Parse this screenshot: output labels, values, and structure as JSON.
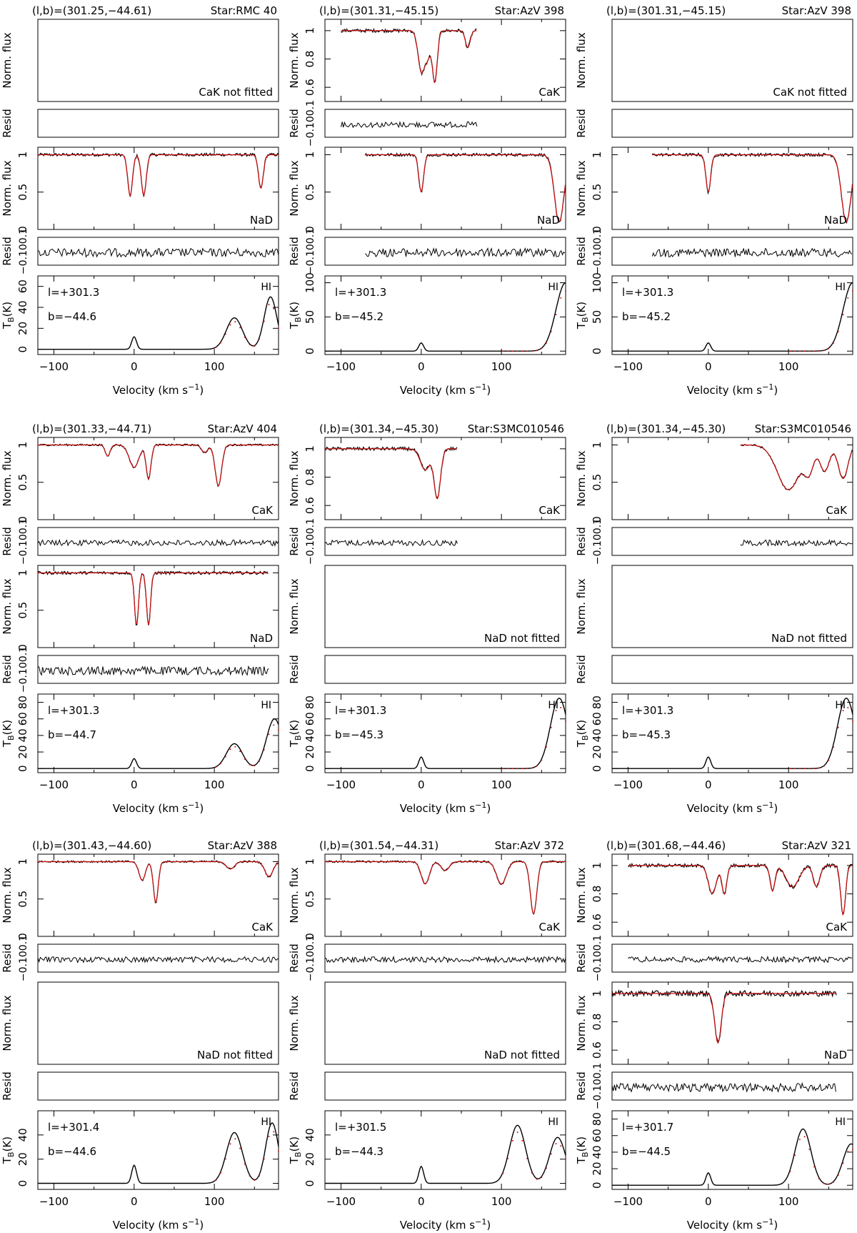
{
  "figure": {
    "x_axis_label": "Velocity (km s",
    "x_axis_label_sup": "−1",
    "x_axis_label_close": ")",
    "x_tick_labels": [
      "−100",
      "0",
      "100"
    ],
    "colors": {
      "data": "#000000",
      "fit": "#cc1111",
      "frame": "#000000"
    },
    "hi_label": "HI",
    "resid_label": "Resid",
    "flux_label": "Norm. flux",
    "tb_label": "T",
    "tb_label_sub": "B",
    "tb_label_close": "(K)"
  },
  "chart_data": [
    {
      "type": "line",
      "coords": "(l,b)=(301.25,−44.61)",
      "star": "Star:RMC 40",
      "x_range": [
        -120,
        180
      ],
      "cak": {
        "fitted": false,
        "label": "CaK not fitted"
      },
      "nad": {
        "fitted": true,
        "label": "NaD",
        "yticks": [
          "0",
          "0.5",
          "1"
        ],
        "ylim": [
          0,
          1.1
        ],
        "v_range": [
          -120,
          180
        ],
        "lines": [
          {
            "v": -5,
            "depth": 0.55,
            "width": 3
          },
          {
            "v": 12,
            "depth": 0.55,
            "width": 3
          },
          {
            "v": 158,
            "depth": 0.45,
            "width": 3
          }
        ]
      },
      "resid": {
        "yticks": [
          "−0.1",
          "0",
          "0.1"
        ]
      },
      "hi": {
        "l_label": "l=+301.3",
        "b_label": "b=−44.6",
        "yticks": [
          "0",
          "20",
          "40",
          "60"
        ],
        "ylim": [
          -5,
          70
        ],
        "components": [
          {
            "v": 0,
            "amp": 12,
            "width": 3
          },
          {
            "v": 125,
            "amp": 30,
            "width": 10
          },
          {
            "v": 170,
            "amp": 50,
            "width": 8
          }
        ]
      }
    },
    {
      "type": "line",
      "coords": "(l,b)=(301.31,−45.15)",
      "star": "Star:AzV 398",
      "x_range": [
        -120,
        180
      ],
      "cak": {
        "fitted": true,
        "label": "CaK",
        "yticks": [
          "0.6",
          "0.8",
          "1"
        ],
        "ylim": [
          0.5,
          1.08
        ],
        "v_range": [
          -100,
          70
        ],
        "lines": [
          {
            "v": 0,
            "depth": 0.28,
            "width": 4
          },
          {
            "v": 17,
            "depth": 0.36,
            "width": 3
          },
          {
            "v": 8,
            "depth": 0.18,
            "width": 4
          },
          {
            "v": 58,
            "depth": 0.12,
            "width": 3
          }
        ]
      },
      "nad": {
        "fitted": true,
        "label": "NaD",
        "yticks": [
          "0",
          "0.5",
          "1"
        ],
        "ylim": [
          0,
          1.1
        ],
        "v_range": [
          -70,
          180
        ],
        "lines": [
          {
            "v": 0,
            "depth": 0.5,
            "width": 3
          },
          {
            "v": 172,
            "depth": 0.9,
            "width": 6
          }
        ]
      },
      "resid": {
        "yticks": [
          "−0.1",
          "0",
          "0.1"
        ]
      },
      "hi": {
        "l_label": "l=+301.3",
        "b_label": "b=−45.2",
        "yticks": [
          "0",
          "50",
          "100"
        ],
        "ylim": [
          -5,
          110
        ],
        "components": [
          {
            "v": 0,
            "amp": 12,
            "width": 3
          },
          {
            "v": 180,
            "amp": 100,
            "width": 12
          }
        ]
      }
    },
    {
      "type": "line",
      "coords": "(l,b)=(301.31,−45.15)",
      "star": "Star:AzV 398",
      "x_range": [
        -120,
        180
      ],
      "cak": {
        "fitted": false,
        "label": "CaK not fitted"
      },
      "nad": {
        "fitted": true,
        "label": "NaD",
        "yticks": [
          "0",
          "0.5",
          "1"
        ],
        "ylim": [
          0,
          1.1
        ],
        "v_range": [
          -70,
          180
        ],
        "lines": [
          {
            "v": 0,
            "depth": 0.5,
            "width": 3
          },
          {
            "v": 172,
            "depth": 0.9,
            "width": 6
          }
        ]
      },
      "resid": {
        "yticks": [
          "−0.1",
          "0",
          "0.1"
        ]
      },
      "hi": {
        "l_label": "l=+301.3",
        "b_label": "b=−45.2",
        "yticks": [
          "0",
          "50",
          "100"
        ],
        "ylim": [
          -5,
          110
        ],
        "components": [
          {
            "v": 0,
            "amp": 12,
            "width": 3
          },
          {
            "v": 180,
            "amp": 100,
            "width": 12
          }
        ]
      }
    },
    {
      "type": "line",
      "coords": "(l,b)=(301.33,−44.71)",
      "star": "Star:AzV 404",
      "x_range": [
        -120,
        180
      ],
      "cak": {
        "fitted": true,
        "label": "CaK",
        "yticks": [
          "0",
          "0.5",
          "1"
        ],
        "ylim": [
          0,
          1.1
        ],
        "v_range": [
          -120,
          180
        ],
        "lines": [
          {
            "v": -33,
            "depth": 0.15,
            "width": 3
          },
          {
            "v": 0,
            "depth": 0.3,
            "width": 6
          },
          {
            "v": 18,
            "depth": 0.45,
            "width": 3
          },
          {
            "v": 105,
            "depth": 0.55,
            "width": 4
          },
          {
            "v": 88,
            "depth": 0.1,
            "width": 4
          }
        ]
      },
      "nad": {
        "fitted": true,
        "label": "NaD",
        "yticks": [
          "0",
          "0.5",
          "1"
        ],
        "ylim": [
          0,
          1.1
        ],
        "v_range": [
          -120,
          168
        ],
        "lines": [
          {
            "v": 3,
            "depth": 0.7,
            "width": 2.5
          },
          {
            "v": 18,
            "depth": 0.7,
            "width": 2.5
          }
        ]
      },
      "resid": {
        "yticks": [
          "−0.1",
          "0",
          "0.1"
        ]
      },
      "hi": {
        "l_label": "l=+301.3",
        "b_label": "b=−44.7",
        "yticks": [
          "0",
          "20",
          "40",
          "60",
          "80"
        ],
        "ylim": [
          -5,
          90
        ],
        "components": [
          {
            "v": 0,
            "amp": 12,
            "width": 3
          },
          {
            "v": 125,
            "amp": 30,
            "width": 10
          },
          {
            "v": 175,
            "amp": 60,
            "width": 10
          }
        ]
      }
    },
    {
      "type": "line",
      "coords": "(l,b)=(301.34,−45.30)",
      "star": "Star:S3MC010546",
      "x_range": [
        -120,
        180
      ],
      "cak": {
        "fitted": true,
        "label": "CaK",
        "yticks": [
          "0.6",
          "0.8",
          "1"
        ],
        "ylim": [
          0.5,
          1.08
        ],
        "v_range": [
          -120,
          45
        ],
        "lines": [
          {
            "v": 5,
            "depth": 0.15,
            "width": 6
          },
          {
            "v": 20,
            "depth": 0.35,
            "width": 4
          }
        ]
      },
      "nad": {
        "fitted": false,
        "label": "NaD not fitted"
      },
      "resid": {
        "yticks": [
          "−0.1",
          "0",
          "0.1"
        ]
      },
      "hi": {
        "l_label": "l=+301.3",
        "b_label": "b=−45.3",
        "yticks": [
          "0",
          "20",
          "40",
          "60",
          "80"
        ],
        "ylim": [
          -5,
          90
        ],
        "components": [
          {
            "v": 0,
            "amp": 14,
            "width": 3
          },
          {
            "v": 172,
            "amp": 85,
            "width": 11
          }
        ]
      }
    },
    {
      "type": "line",
      "coords": "(l,b)=(301.34,−45.30)",
      "star": "Star:S3MC010546",
      "x_range": [
        -120,
        180
      ],
      "cak": {
        "fitted": true,
        "label": "CaK",
        "yticks": [
          "0",
          "0.5",
          "1"
        ],
        "ylim": [
          0,
          1.1
        ],
        "v_range": [
          40,
          180
        ],
        "lines": [
          {
            "v": 100,
            "depth": 0.6,
            "width": 14
          },
          {
            "v": 125,
            "depth": 0.35,
            "width": 6
          },
          {
            "v": 145,
            "depth": 0.35,
            "width": 6
          },
          {
            "v": 168,
            "depth": 0.45,
            "width": 6
          }
        ]
      },
      "nad": {
        "fitted": false,
        "label": "NaD not fitted"
      },
      "resid": {
        "yticks": [
          "−0.1",
          "0",
          "0.1"
        ]
      },
      "hi": {
        "l_label": "l=+301.3",
        "b_label": "b=−45.3",
        "yticks": [
          "0",
          "20",
          "40",
          "60",
          "80"
        ],
        "ylim": [
          -5,
          90
        ],
        "components": [
          {
            "v": 0,
            "amp": 14,
            "width": 3
          },
          {
            "v": 172,
            "amp": 85,
            "width": 11
          }
        ]
      }
    },
    {
      "type": "line",
      "coords": "(l,b)=(301.43,−44.60)",
      "star": "Star:AzV 388",
      "x_range": [
        -120,
        180
      ],
      "cak": {
        "fitted": true,
        "label": "CaK",
        "yticks": [
          "0",
          "0.5",
          "1"
        ],
        "ylim": [
          0,
          1.1
        ],
        "v_range": [
          -120,
          180
        ],
        "lines": [
          {
            "v": 10,
            "depth": 0.25,
            "width": 4
          },
          {
            "v": 27,
            "depth": 0.55,
            "width": 3
          },
          {
            "v": 120,
            "depth": 0.1,
            "width": 5
          },
          {
            "v": 168,
            "depth": 0.2,
            "width": 5
          }
        ]
      },
      "nad": {
        "fitted": false,
        "label": "NaD not fitted"
      },
      "resid": {
        "yticks": [
          "−0.1",
          "0",
          "0.1"
        ]
      },
      "hi": {
        "l_label": "l=+301.4",
        "b_label": "b=−44.6",
        "yticks": [
          "0",
          "20",
          "40"
        ],
        "ylim": [
          -5,
          60
        ],
        "components": [
          {
            "v": 0,
            "amp": 15,
            "width": 3
          },
          {
            "v": 125,
            "amp": 42,
            "width": 10
          },
          {
            "v": 172,
            "amp": 50,
            "width": 8
          }
        ]
      }
    },
    {
      "type": "line",
      "coords": "(l,b)=(301.54,−44.31)",
      "star": "Star:AzV 372",
      "x_range": [
        -120,
        180
      ],
      "cak": {
        "fitted": true,
        "label": "CaK",
        "yticks": [
          "0",
          "0.5",
          "1"
        ],
        "ylim": [
          0,
          1.1
        ],
        "v_range": [
          -120,
          180
        ],
        "lines": [
          {
            "v": 5,
            "depth": 0.3,
            "width": 5
          },
          {
            "v": 30,
            "depth": 0.12,
            "width": 5
          },
          {
            "v": 100,
            "depth": 0.3,
            "width": 6
          },
          {
            "v": 140,
            "depth": 0.7,
            "width": 4
          }
        ]
      },
      "nad": {
        "fitted": false,
        "label": "NaD not fitted"
      },
      "resid": {
        "yticks": [
          "−0.1",
          "0",
          "0.1"
        ]
      },
      "hi": {
        "l_label": "l=+301.5",
        "b_label": "b=−44.3",
        "yticks": [
          "0",
          "20",
          "40"
        ],
        "ylim": [
          -5,
          60
        ],
        "components": [
          {
            "v": 0,
            "amp": 14,
            "width": 3
          },
          {
            "v": 120,
            "amp": 48,
            "width": 10
          },
          {
            "v": 170,
            "amp": 38,
            "width": 10
          }
        ]
      }
    },
    {
      "type": "line",
      "coords": "(l,b)=(301.68,−44.46)",
      "star": "Star:AzV 321",
      "x_range": [
        -120,
        180
      ],
      "cak": {
        "fitted": true,
        "label": "CaK",
        "yticks": [
          "0.6",
          "0.8",
          "1"
        ],
        "ylim": [
          0.5,
          1.08
        ],
        "v_range": [
          -100,
          180
        ],
        "lines": [
          {
            "v": 5,
            "depth": 0.2,
            "width": 5
          },
          {
            "v": 20,
            "depth": 0.2,
            "width": 3
          },
          {
            "v": 80,
            "depth": 0.18,
            "width": 3
          },
          {
            "v": 105,
            "depth": 0.15,
            "width": 8
          },
          {
            "v": 135,
            "depth": 0.15,
            "width": 4
          },
          {
            "v": 168,
            "depth": 0.35,
            "width": 3
          }
        ]
      },
      "nad": {
        "fitted": true,
        "label": "NaD",
        "yticks": [
          "0.6",
          "0.8",
          "1"
        ],
        "ylim": [
          0.5,
          1.08
        ],
        "v_range": [
          -120,
          160
        ],
        "lines": [
          {
            "v": 12,
            "depth": 0.35,
            "width": 4
          }
        ]
      },
      "resid": {
        "yticks": [
          "−0.1",
          "0",
          "0.1"
        ]
      },
      "hi": {
        "l_label": "l=+301.7",
        "b_label": "b=−44.5",
        "yticks": [
          "0",
          "20",
          "40",
          "60",
          "80"
        ],
        "ylim": [
          -5,
          90
        ],
        "components": [
          {
            "v": 0,
            "amp": 15,
            "width": 3
          },
          {
            "v": 118,
            "amp": 68,
            "width": 10
          },
          {
            "v": 178,
            "amp": 50,
            "width": 10
          }
        ]
      }
    }
  ]
}
